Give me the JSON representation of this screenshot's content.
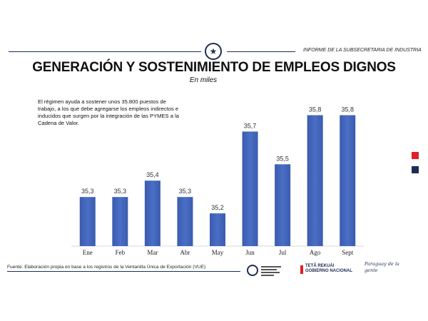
{
  "header": {
    "report_label": "INFORME DE LA SUBSECRETARIA DE INDUSTRIA"
  },
  "title": "GENERACIÓN Y SOSTENIMIENTO DE EMPLEOS DIGNOS",
  "subtitle": "En miles",
  "note": "El régimen ayuda a sostener unos 35.800 puestos de trabajo, a los que debe agregarse los empleos indirectos e inducidos que surgen por la integración de las PYMES a la Cadena de Valor.",
  "chart_data": {
    "type": "bar",
    "title": "GENERACIÓN Y SOSTENIMIENTO DE EMPLEOS DIGNOS",
    "subtitle": "En miles",
    "categories": [
      "Ene",
      "Feb",
      "Mar",
      "Abr",
      "May",
      "Jun",
      "Jul",
      "Ago",
      "Sept"
    ],
    "values": [
      35.3,
      35.3,
      35.4,
      35.3,
      35.2,
      35.7,
      35.5,
      35.8,
      35.8
    ],
    "value_labels": [
      "35,3",
      "35,3",
      "35,4",
      "35,3",
      "35,2",
      "35,7",
      "35,5",
      "35,8",
      "35,8"
    ],
    "ylim": [
      35.0,
      35.85
    ],
    "grid": false,
    "bar_color": "#4a6fc4"
  },
  "legend_colors": [
    "#e01f26",
    "#1f2d55"
  ],
  "footer": {
    "source": "Fuente: Elaboración propia en base a los registros de la Ventanilla Única de Exportación (VUE)",
    "tag_line_1": "TETÃ REKUÁI",
    "tag_line_2": "GOBIERNO NACIONAL",
    "slogan": "Paraguay de la gente"
  }
}
